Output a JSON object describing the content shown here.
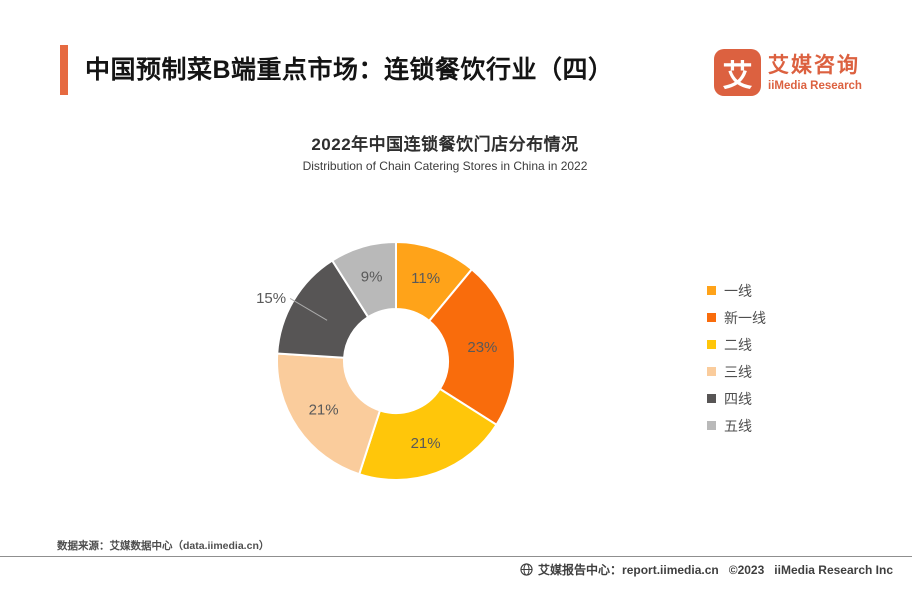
{
  "header": {
    "title": "中国预制菜B端重点市场：连锁餐饮行业（四）",
    "accent_color": "#E66A41",
    "logo": {
      "icon_char": "艾",
      "name_cn": "艾媒咨询",
      "name_en": "iiMedia Research",
      "color": "#DC6140"
    }
  },
  "chart_data": {
    "type": "pie",
    "variant": "donut",
    "title": "2022年中国连锁餐饮门店分布情况",
    "subtitle": "Distribution of Chain Catering Stores in China in 2022",
    "unit": "%",
    "legend_position": "right",
    "start_angle_deg": 0,
    "inner_radius_ratio": 0.44,
    "label_color": "#595959",
    "slice_border_color": "#ffffff",
    "slices": [
      {
        "name": "一线",
        "value": 11,
        "color": "#FFA319",
        "label_outside": false
      },
      {
        "name": "新一线",
        "value": 23,
        "color": "#F96C0C",
        "label_outside": false
      },
      {
        "name": "二线",
        "value": 21,
        "color": "#FFC60A",
        "label_outside": false
      },
      {
        "name": "三线",
        "value": 21,
        "color": "#FACC9C",
        "label_outside": false
      },
      {
        "name": "四线",
        "value": 15,
        "color": "#575555",
        "label_outside": true
      },
      {
        "name": "五线",
        "value": 9,
        "color": "#B9B9B9",
        "label_outside": false
      }
    ]
  },
  "footer": {
    "source": "数据来源：艾媒数据中心（data.iimedia.cn）",
    "report_center": "艾媒报告中心：report.iimedia.cn",
    "copyright": "©2023",
    "company": "iiMedia Research Inc"
  }
}
